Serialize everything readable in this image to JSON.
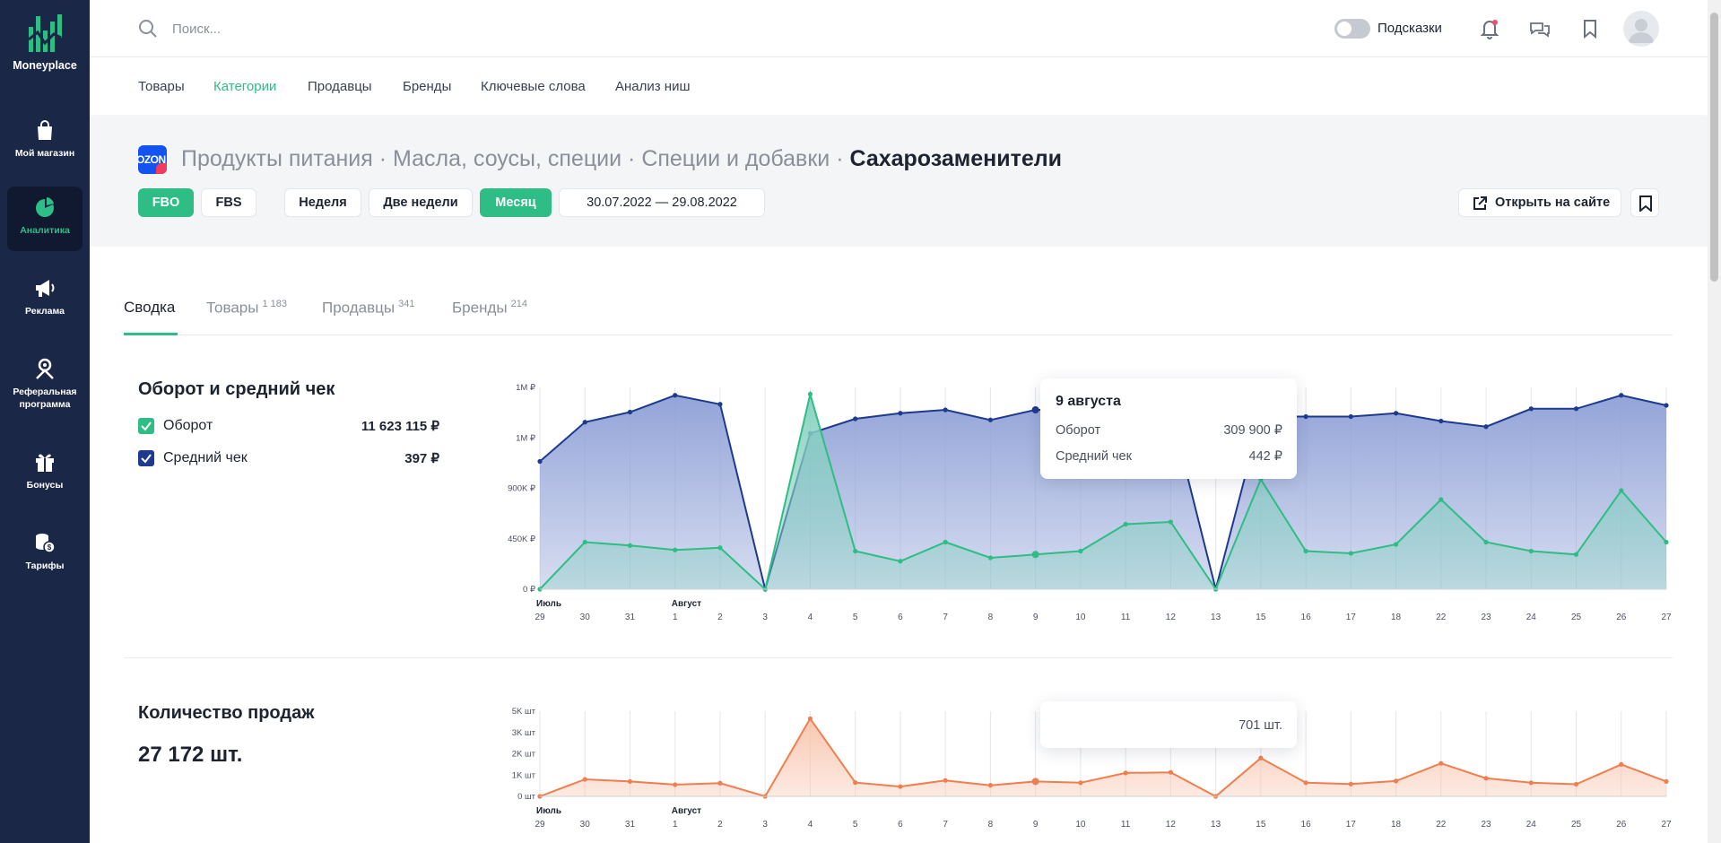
{
  "app": {
    "brand": "Moneyplace"
  },
  "sidebar": {
    "items": [
      {
        "label": "Мой магазин",
        "icon": "shopping-bag-icon"
      },
      {
        "label": "Аналитика",
        "icon": "pie-chart-icon",
        "active": true
      },
      {
        "label": "Реклама",
        "icon": "megaphone-icon"
      },
      {
        "label": "Реферальная программа",
        "icon": "referral-icon"
      },
      {
        "label": "Бонусы",
        "icon": "gift-icon"
      },
      {
        "label": "Тарифы",
        "icon": "coins-icon"
      }
    ]
  },
  "topbar": {
    "search_placeholder": "Поиск...",
    "hints_label": "Подсказки",
    "hints_enabled": false
  },
  "nav": {
    "items": [
      "Товары",
      "Категории",
      "Продавцы",
      "Бренды",
      "Ключевые слова",
      "Анализ ниш"
    ],
    "active": "Категории"
  },
  "header": {
    "marketplace": "OZON",
    "breadcrumb": [
      "Продукты питания",
      "Масла, соусы, специи",
      "Специи и добавки"
    ],
    "current": "Сахарозаменители",
    "separator": " · ",
    "fulfilment": [
      "FBO",
      "FBS"
    ],
    "periods": [
      "Неделя",
      "Две недели",
      "Месяц"
    ],
    "date_range": "30.07.2022 — 29.08.2022",
    "open_site": "Открыть на сайте"
  },
  "content_tabs": [
    {
      "label": "Сводка",
      "count": ""
    },
    {
      "label": "Товары",
      "count": "1 183"
    },
    {
      "label": "Продавцы",
      "count": "341"
    },
    {
      "label": "Бренды",
      "count": "214"
    }
  ],
  "turnover": {
    "title": "Оборот и средний чек",
    "legend": [
      {
        "name": "Оборот",
        "value": "11 623 115 ₽",
        "color": "#2ebd85"
      },
      {
        "name": "Средний чек",
        "value": "397 ₽",
        "color": "#1d3a8f"
      }
    ],
    "tooltip": {
      "date": "9 августа",
      "rows": [
        {
          "label": "Оборот",
          "value": "309 900 ₽"
        },
        {
          "label": "Средний чек",
          "value": "442 ₽"
        }
      ]
    }
  },
  "sales": {
    "title": "Количество продаж",
    "total": "27 172 шт.",
    "tooltip": {
      "value": "701 шт."
    }
  },
  "chart_data": [
    {
      "type": "area",
      "title": "Оборот и средний чек",
      "month_labels": [
        {
          "label": "Июль",
          "at": "29"
        },
        {
          "label": "Август",
          "at": "1"
        }
      ],
      "categories": [
        "29",
        "30",
        "31",
        "1",
        "2",
        "3",
        "4",
        "5",
        "6",
        "7",
        "8",
        "9",
        "10",
        "11",
        "12",
        "13",
        "15",
        "16",
        "17",
        "18",
        "22",
        "23",
        "24",
        "25",
        "26",
        "27"
      ],
      "y_ticks": [
        "0 ₽",
        "450K ₽",
        "900K ₽",
        "1M ₽",
        "1M ₽"
      ],
      "ylim": [
        0,
        1800000
      ],
      "grid": true,
      "series": [
        {
          "name": "Средний чек",
          "color": "#1d3a8f",
          "fill": "#8d9fd6",
          "values": [
            1140000,
            1490000,
            1580000,
            1730000,
            1650000,
            0,
            1390000,
            1520000,
            1570000,
            1600000,
            1510000,
            1600000,
            1600000,
            1600000,
            1600000,
            0,
            1540000,
            1540000,
            1540000,
            1570000,
            1500000,
            1450000,
            1610000,
            1610000,
            1730000,
            1640000
          ]
        },
        {
          "name": "Оборот",
          "color": "#2ebd85",
          "fill": "#86d1c0",
          "values": [
            0,
            420000,
            390000,
            350000,
            370000,
            0,
            1740000,
            340000,
            250000,
            420000,
            280000,
            309900,
            340000,
            580000,
            600000,
            0,
            980000,
            340000,
            320000,
            400000,
            800000,
            420000,
            340000,
            310000,
            880000,
            420000
          ]
        }
      ]
    },
    {
      "type": "area",
      "title": "Количество продаж",
      "month_labels": [
        {
          "label": "Июль",
          "at": "29"
        },
        {
          "label": "Август",
          "at": "1"
        }
      ],
      "categories": [
        "29",
        "30",
        "31",
        "1",
        "2",
        "3",
        "4",
        "5",
        "6",
        "7",
        "8",
        "9",
        "10",
        "11",
        "12",
        "13",
        "15",
        "16",
        "17",
        "18",
        "22",
        "23",
        "24",
        "25",
        "26",
        "27"
      ],
      "y_ticks": [
        "0 шт",
        "1K шт",
        "2K шт",
        "3K шт",
        "5K шт"
      ],
      "ylim": [
        0,
        4000
      ],
      "grid": true,
      "series": [
        {
          "name": "Количество продаж",
          "color": "#f07e4e",
          "fill": "#f8c4ad",
          "values": [
            0,
            800,
            700,
            550,
            620,
            0,
            3650,
            650,
            460,
            750,
            520,
            701,
            640,
            1100,
            1130,
            0,
            1800,
            640,
            580,
            720,
            1550,
            850,
            640,
            570,
            1500,
            700
          ]
        }
      ]
    }
  ]
}
